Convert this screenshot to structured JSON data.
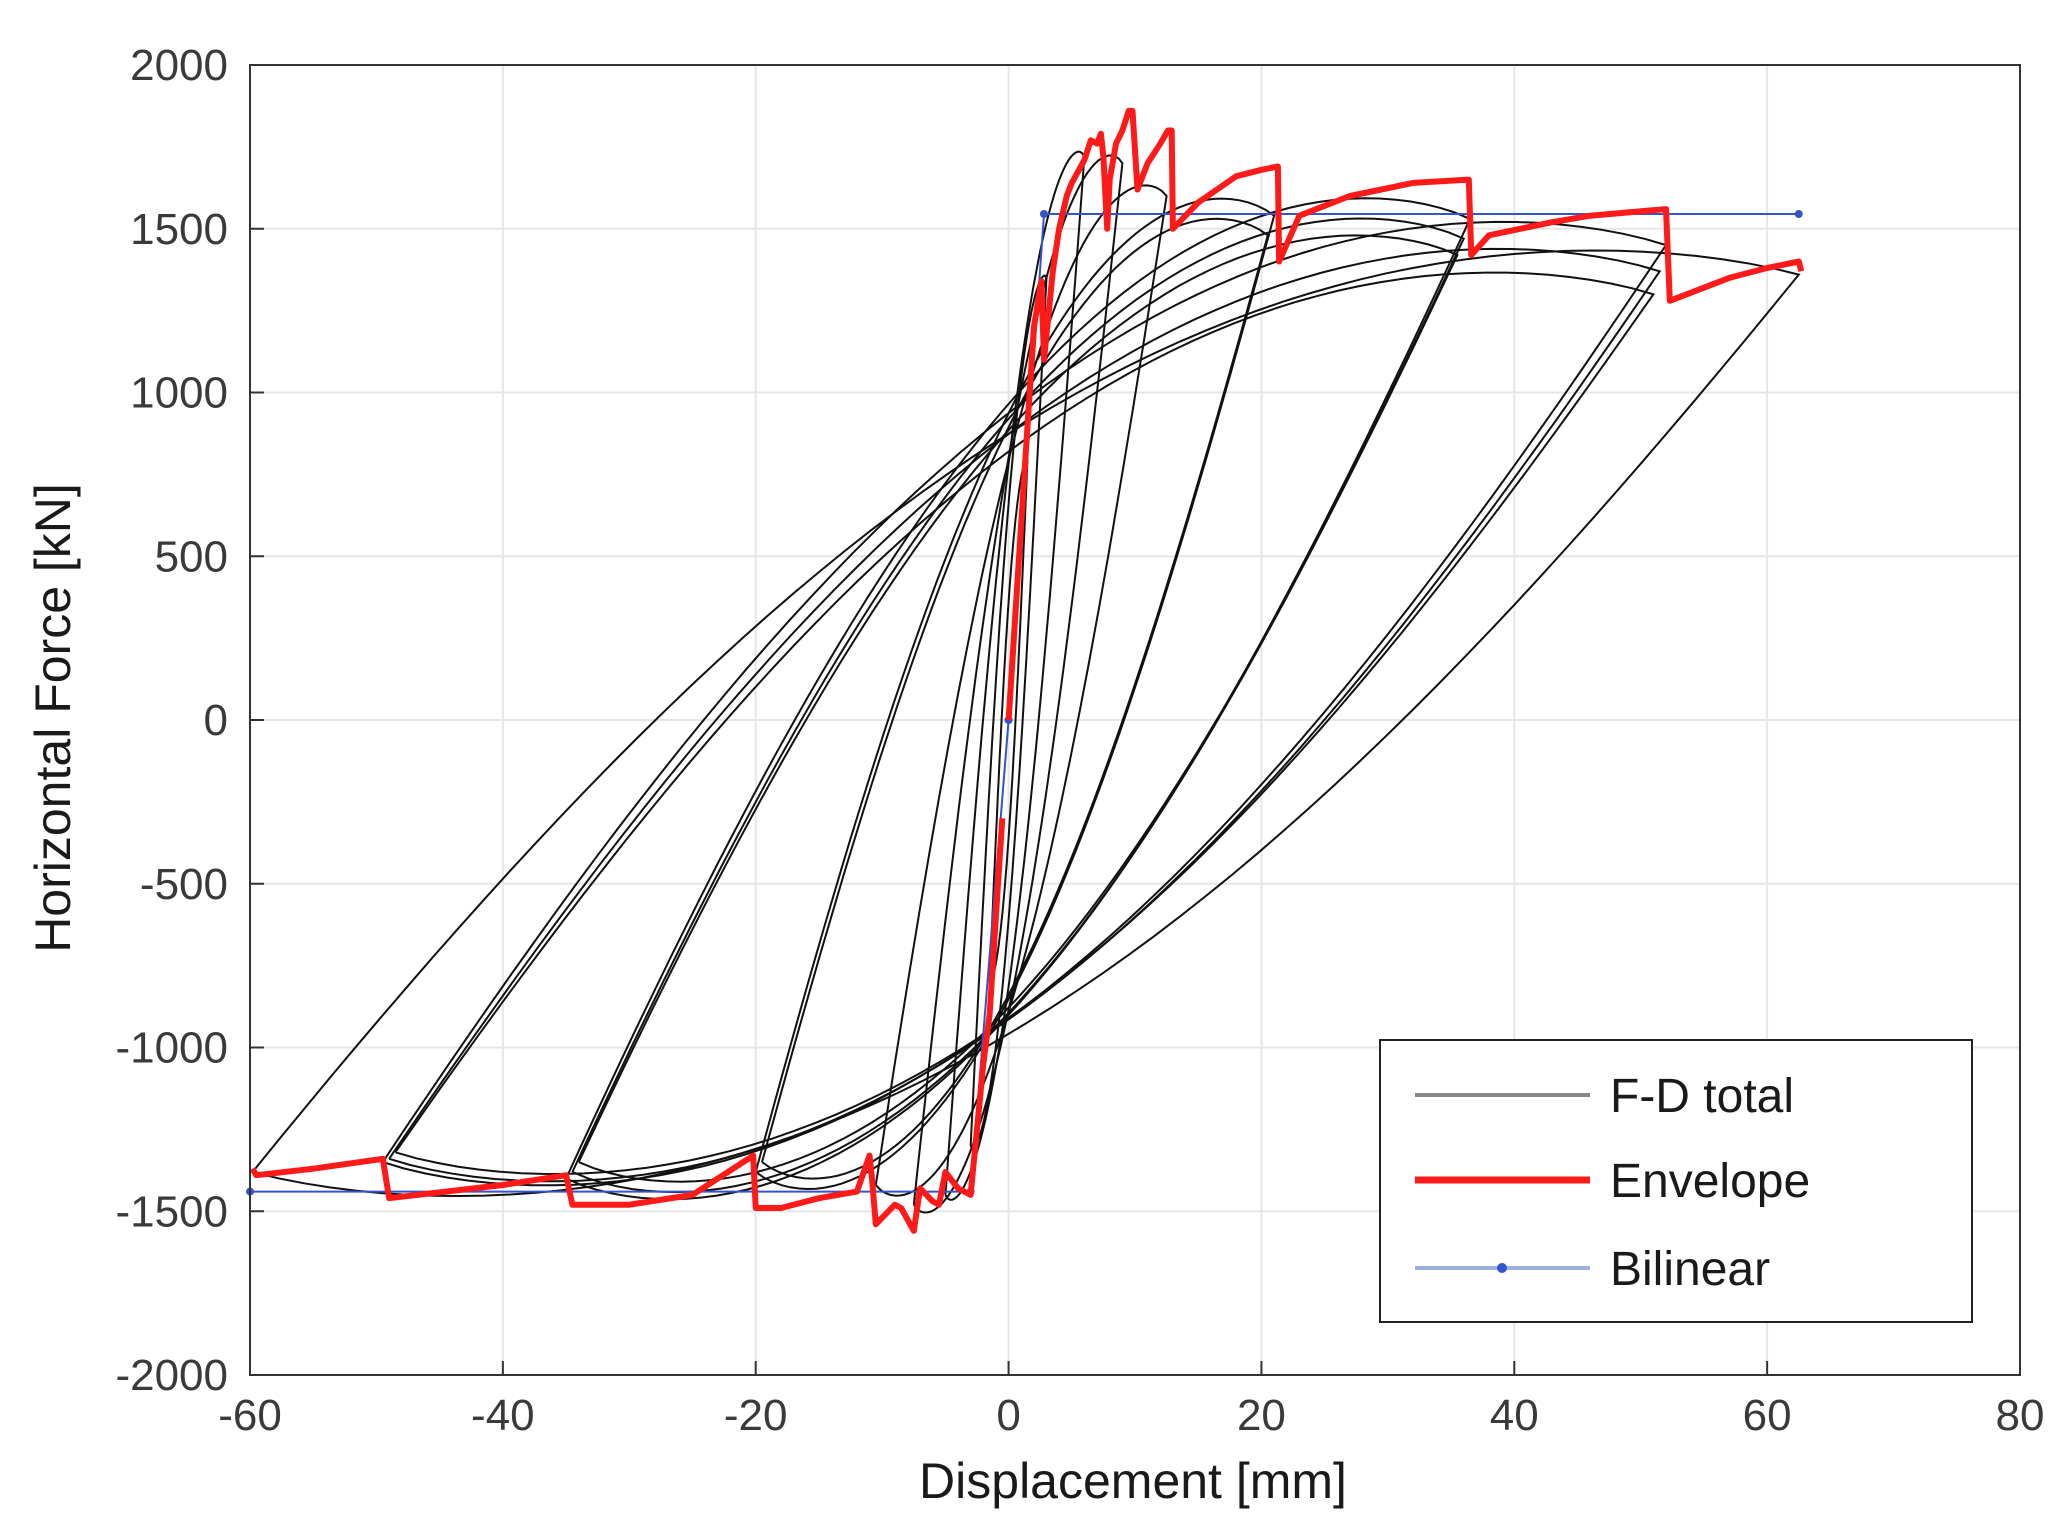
{
  "chart_data": {
    "type": "line",
    "title": "",
    "xlabel": "Displacement [mm]",
    "ylabel": "Horizontal Force [kN]",
    "xlim": [
      -60,
      80
    ],
    "ylim": [
      -2000,
      2000
    ],
    "xticks": [
      -60,
      -40,
      -20,
      0,
      20,
      40,
      60,
      80
    ],
    "yticks": [
      -2000,
      -1500,
      -1000,
      -500,
      0,
      500,
      1000,
      1500,
      2000
    ],
    "grid": true,
    "legend_position": "bottom-right",
    "colors": {
      "fd_total": "#111111",
      "envelope": "#ff1a1a",
      "bilinear": "#3355cc"
    },
    "series": [
      {
        "name": "Envelope",
        "key": "envelope"
      },
      {
        "name": "F-D total",
        "key": "fd_total"
      },
      {
        "name": "Bilinear",
        "key": "bilinear"
      }
    ],
    "legend": [
      "F-D total",
      "Envelope",
      "Bilinear"
    ],
    "envelope_positive": [
      [
        0,
        0
      ],
      [
        1,
        600
      ],
      [
        2,
        1200
      ],
      [
        2.6,
        1340
      ],
      [
        2.8,
        1100
      ],
      [
        3.5,
        1370
      ],
      [
        4,
        1500
      ],
      [
        4.6,
        1600
      ],
      [
        5,
        1640
      ],
      [
        6,
        1710
      ],
      [
        6.5,
        1770
      ],
      [
        7,
        1760
      ],
      [
        7.3,
        1790
      ],
      [
        7.5,
        1720
      ],
      [
        7.8,
        1500
      ],
      [
        8,
        1650
      ],
      [
        8.5,
        1760
      ],
      [
        9,
        1800
      ],
      [
        9.5,
        1860
      ],
      [
        9.8,
        1860
      ],
      [
        10.2,
        1620
      ],
      [
        11,
        1700
      ],
      [
        12,
        1760
      ],
      [
        12.6,
        1800
      ],
      [
        12.9,
        1800
      ],
      [
        13,
        1500
      ],
      [
        15,
        1580
      ],
      [
        18,
        1660
      ],
      [
        20,
        1680
      ],
      [
        21.3,
        1690
      ],
      [
        21.4,
        1400
      ],
      [
        23,
        1540
      ],
      [
        27,
        1600
      ],
      [
        32,
        1640
      ],
      [
        36.4,
        1650
      ],
      [
        36.6,
        1420
      ],
      [
        38,
        1480
      ],
      [
        43,
        1520
      ],
      [
        46,
        1540
      ],
      [
        52,
        1560
      ],
      [
        52.3,
        1280
      ],
      [
        55,
        1320
      ],
      [
        57,
        1350
      ],
      [
        60,
        1380
      ],
      [
        62.5,
        1400
      ],
      [
        62.7,
        1370
      ]
    ],
    "envelope_negative": [
      [
        -0.5,
        -300
      ],
      [
        -1,
        -600
      ],
      [
        -1.5,
        -900
      ],
      [
        -2,
        -1050
      ],
      [
        -3,
        -1450
      ],
      [
        -4,
        -1430
      ],
      [
        -5,
        -1380
      ],
      [
        -5.5,
        -1480
      ],
      [
        -6,
        -1470
      ],
      [
        -7,
        -1430
      ],
      [
        -7.5,
        -1560
      ],
      [
        -8.5,
        -1490
      ],
      [
        -9,
        -1480
      ],
      [
        -10,
        -1520
      ],
      [
        -10.5,
        -1540
      ],
      [
        -10.8,
        -1400
      ],
      [
        -11,
        -1330
      ],
      [
        -12,
        -1440
      ],
      [
        -15,
        -1460
      ],
      [
        -18,
        -1490
      ],
      [
        -20,
        -1490
      ],
      [
        -20.2,
        -1330
      ],
      [
        -25,
        -1450
      ],
      [
        -30,
        -1480
      ],
      [
        -34.5,
        -1480
      ],
      [
        -35,
        -1390
      ],
      [
        -40,
        -1420
      ],
      [
        -49,
        -1460
      ],
      [
        -49.5,
        -1340
      ],
      [
        -55,
        -1370
      ],
      [
        -59.5,
        -1390
      ],
      [
        -59.8,
        -1370
      ]
    ],
    "bilinear_positive": [
      [
        0,
        0
      ],
      [
        2.8,
        1545
      ],
      [
        62.5,
        1545
      ]
    ],
    "bilinear_negative": [
      [
        0,
        0
      ],
      [
        -3,
        -1440
      ],
      [
        -60,
        -1440
      ]
    ],
    "cycles": [
      {
        "dmax": 1.5,
        "fmax": 800,
        "dmin": -1.5,
        "fmin": -800,
        "fat": 0.2
      },
      {
        "dmax": 3,
        "fmax": 1350,
        "dmin": -3,
        "fmin": -1300,
        "fat": 0.25
      },
      {
        "dmax": 6,
        "fmax": 1720,
        "dmin": -5,
        "fmin": -1450,
        "fat": 0.3
      },
      {
        "dmax": 9,
        "fmax": 1700,
        "dmin": -7.5,
        "fmin": -1480,
        "fat": 0.35
      },
      {
        "dmax": 12.5,
        "fmax": 1600,
        "dmin": -10.5,
        "fmin": -1420,
        "fat": 0.4
      },
      {
        "dmax": 21,
        "fmax": 1540,
        "dmin": -20,
        "fmin": -1380,
        "fat": 0.5
      },
      {
        "dmax": 20.5,
        "fmax": 1480,
        "dmin": -19.5,
        "fmin": -1350,
        "fat": 0.5
      },
      {
        "dmax": 36.5,
        "fmax": 1530,
        "dmin": -35,
        "fmin": -1400,
        "fat": 0.55
      },
      {
        "dmax": 36,
        "fmax": 1470,
        "dmin": -34.5,
        "fmin": -1380,
        "fat": 0.55
      },
      {
        "dmax": 35.5,
        "fmax": 1420,
        "dmin": -34,
        "fmin": -1350,
        "fat": 0.55
      },
      {
        "dmax": 52,
        "fmax": 1450,
        "dmin": -49.5,
        "fmin": -1350,
        "fat": 0.6
      },
      {
        "dmax": 51.5,
        "fmax": 1370,
        "dmin": -49,
        "fmin": -1340,
        "fat": 0.6
      },
      {
        "dmax": 51,
        "fmax": 1300,
        "dmin": -48.5,
        "fmin": -1320,
        "fat": 0.6
      },
      {
        "dmax": 62.5,
        "fmax": 1360,
        "dmin": -59.8,
        "fmin": -1380,
        "fat": 0.62
      }
    ]
  }
}
